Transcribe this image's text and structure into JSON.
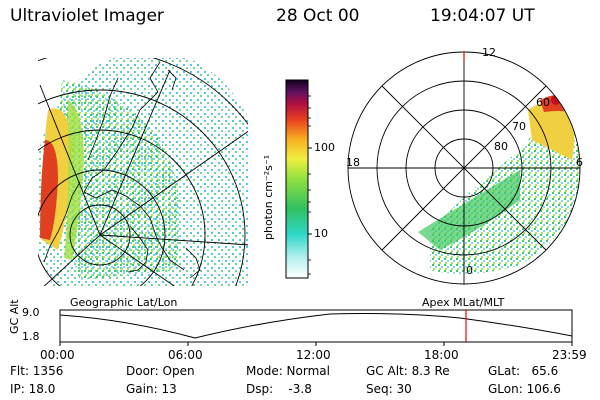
{
  "header": {
    "instrument": "Ultraviolet Imager",
    "date": "28 Oct 00",
    "time": "19:04:07 UT"
  },
  "colorbar": {
    "ticks": [
      "100",
      "10"
    ],
    "unit_label": "photon cm⁻²s⁻¹"
  },
  "panels": {
    "left_label": "Geographic Lat/Lon",
    "right_label": "Apex  MLat/MLT"
  },
  "polar_labels": {
    "mlt": [
      "12",
      "18",
      "6",
      "0"
    ],
    "mlat": [
      "80",
      "70",
      "60"
    ]
  },
  "orbit": {
    "ylabel": "GC Alt",
    "yticks": [
      "9.0",
      "1.8"
    ],
    "xticks": [
      "00:00",
      "06:00",
      "12:00",
      "18:00",
      "23:59"
    ],
    "cursor_color": "#ff0000"
  },
  "status": {
    "flt": "Flt: 1356",
    "ip": "IP: 18.0",
    "door": "Door: Open",
    "gain": "Gain: 13",
    "mode": "Mode: Normal",
    "dsp": "Dsp:    -3.8",
    "gcalt": "GC Alt: 8.3 Re",
    "seq": "Seq: 30",
    "glat": "GLat:   65.6",
    "glon": "GLon: 106.6"
  }
}
